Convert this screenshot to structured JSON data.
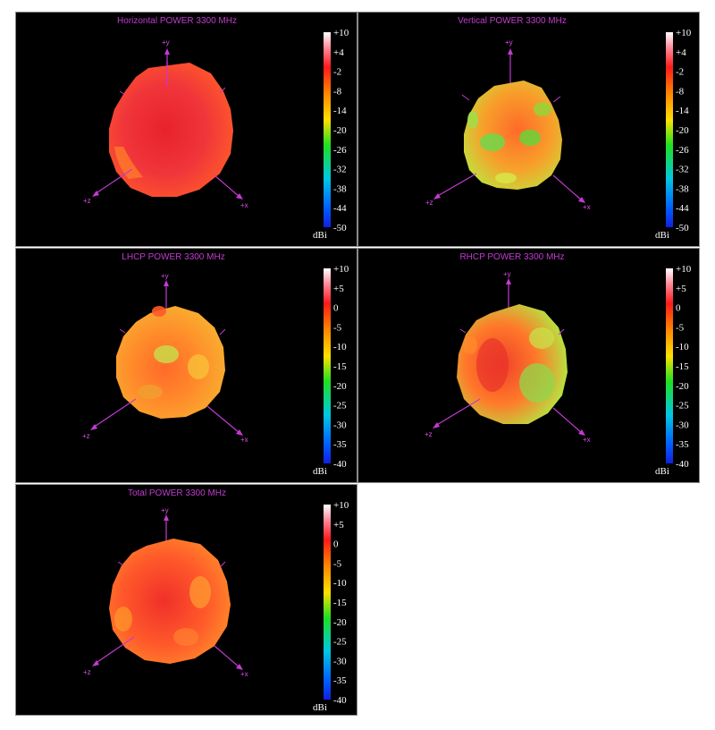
{
  "colors": {
    "background": "#000000",
    "title": "#c23bd1",
    "axis": "#c23bd1",
    "tick_text": "#ffffff"
  },
  "chart_data": [
    {
      "type": "heatmap",
      "title": "Horizontal POWER 3300  MHz",
      "axis_labels": {
        "y": "+y",
        "z": "+z",
        "x": "+x"
      },
      "colorbar": {
        "unit": "dBi",
        "ticks": [
          "+10",
          "+4",
          "-2",
          "-8",
          "-14",
          "-20",
          "-26",
          "-32",
          "-38",
          "-44",
          "-50"
        ],
        "range": [
          -50,
          10
        ]
      },
      "pattern_level": "mostly -2 to -8 dBi (red)"
    },
    {
      "type": "heatmap",
      "title": "Vertical POWER 3300  MHz",
      "axis_labels": {
        "y": "+y",
        "z": "+z",
        "x": "+x"
      },
      "colorbar": {
        "unit": "dBi",
        "ticks": [
          "+10",
          "+4",
          "-2",
          "-8",
          "-14",
          "-20",
          "-26",
          "-32",
          "-38",
          "-44",
          "-50"
        ],
        "range": [
          -50,
          10
        ]
      },
      "pattern_level": "mixed -2 to -20 dBi (orange/yellow/green)"
    },
    {
      "type": "heatmap",
      "title": "LHCP POWER 3300  MHz",
      "axis_labels": {
        "y": "+y",
        "z": "+z",
        "x": "+x"
      },
      "colorbar": {
        "unit": "dBi",
        "ticks": [
          "+10",
          "+5",
          "0",
          "-5",
          "-10",
          "-15",
          "-20",
          "-25",
          "-30",
          "-35",
          "-40"
        ],
        "range": [
          -40,
          10
        ]
      },
      "pattern_level": "mostly -5 to -15 dBi (orange/yellow)"
    },
    {
      "type": "heatmap",
      "title": "RHCP POWER 3300  MHz",
      "axis_labels": {
        "y": "+y",
        "z": "+z",
        "x": "+x"
      },
      "colorbar": {
        "unit": "dBi",
        "ticks": [
          "+10",
          "+5",
          "0",
          "-5",
          "-10",
          "-15",
          "-20",
          "-25",
          "-30",
          "-35",
          "-40"
        ],
        "range": [
          -40,
          10
        ]
      },
      "pattern_level": "mixed 0 to -20 dBi (red/yellow/green)"
    },
    {
      "type": "heatmap",
      "title": "Total POWER 3300  MHz",
      "axis_labels": {
        "y": "+y",
        "z": "+z",
        "x": "+x"
      },
      "colorbar": {
        "unit": "dBi",
        "ticks": [
          "+10",
          "+5",
          "0",
          "-5",
          "-10",
          "-15",
          "-20",
          "-25",
          "-30",
          "-35",
          "-40"
        ],
        "range": [
          -40,
          10
        ]
      },
      "pattern_level": "mostly 0 to -5 dBi (red/orange)"
    }
  ]
}
